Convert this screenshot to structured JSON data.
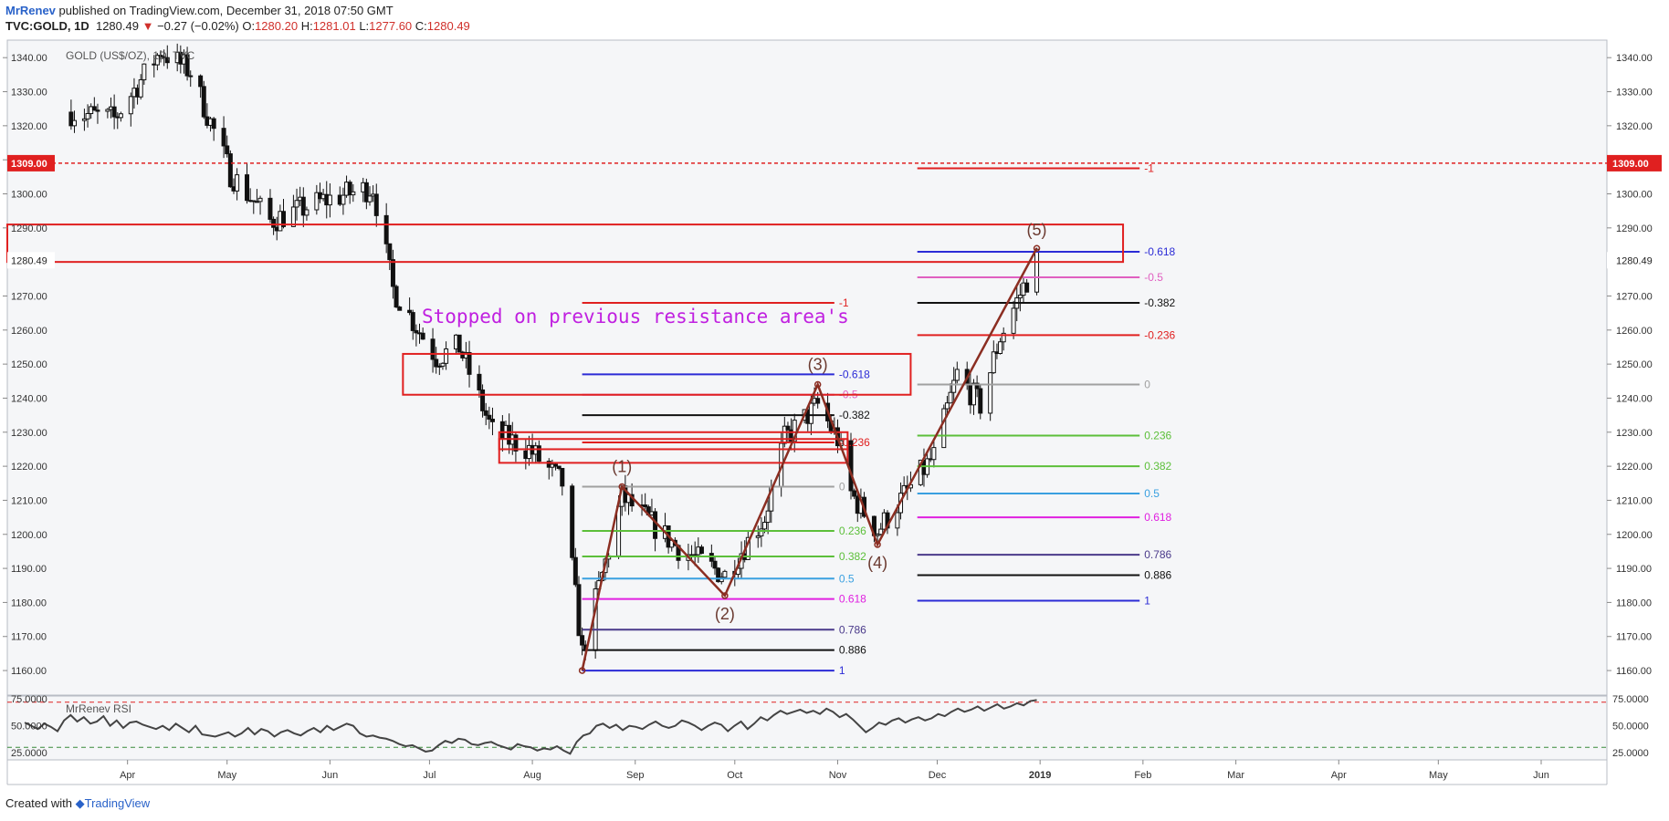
{
  "header": {
    "author": "MrRenev",
    "published": "published on TradingView.com, December 31, 2018 07:50 GMT",
    "symbol": "TVC:GOLD, 1D",
    "last": "1280.49",
    "change_arrow": "▼",
    "change": "−0.27 (−0.02%)",
    "o_label": "O:",
    "o_value": "1280.20",
    "h_label": "H:",
    "h_value": "1281.01",
    "l_label": "L:",
    "l_value": "1277.60",
    "c_label": "C:",
    "c_value": "1280.49"
  },
  "footer": {
    "created_with": "Created with",
    "brand": "TradingView"
  },
  "colors": {
    "red": "#e02020",
    "candle": "#111111",
    "wave": "#8b2e22",
    "blue": "#2b2bd6",
    "magenta": "#e020e0",
    "black": "#111111",
    "grey": "#a0a0a0",
    "green": "#5cbf3a",
    "lightblue": "#3aa0e0",
    "purple": "#4a3a8a",
    "pink": "#e060c0",
    "annotation": "#c020e0"
  },
  "chart_data": [
    {
      "type": "candlestick",
      "title": "GOLD (US$/OZ), 1D, TVC",
      "x_tick_labels": [
        "Apr",
        "May",
        "Jun",
        "Jul",
        "Aug",
        "Sep",
        "Oct",
        "Nov",
        "Dec",
        "2019",
        "Feb",
        "Mar",
        "Apr",
        "May",
        "Jun"
      ],
      "y_tick_labels": [
        "1340.00",
        "1330.00",
        "1320.00",
        "1310.00",
        "1300.00",
        "1290.00",
        "1270.00",
        "1260.00",
        "1250.00",
        "1240.00",
        "1230.00",
        "1220.00",
        "1210.00",
        "1200.00",
        "1190.00",
        "1180.00",
        "1170.00",
        "1160.00"
      ],
      "ylim": [
        1156,
        1343
      ],
      "price_labels": {
        "resistance": "1309.00",
        "last": "1280.49"
      },
      "key_price_levels": [
        1309,
        1280.49
      ],
      "resistance_zones": [
        [
          1280,
          1291
        ],
        [
          1241,
          1253
        ],
        [
          1225,
          1230
        ],
        [
          1221,
          1228
        ]
      ],
      "annotation": "Stopped on previous resistance area's",
      "wave_points": [
        {
          "label": "",
          "date": "2018-08-16",
          "price": 1160
        },
        {
          "label": "(1)",
          "date": "2018-08-28",
          "price": 1214
        },
        {
          "label": "(2)",
          "date": "2018-09-28",
          "price": 1182
        },
        {
          "label": "(3)",
          "date": "2018-10-26",
          "price": 1244
        },
        {
          "label": "(4)",
          "date": "2018-11-13",
          "price": 1197
        },
        {
          "label": "(5)",
          "date": "2018-12-31",
          "price": 1284
        }
      ],
      "fib_sets": [
        {
          "levels": [
            {
              "label": "-1",
              "price": 1268,
              "color": "red"
            },
            {
              "label": "-0.618",
              "price": 1247,
              "color": "blue"
            },
            {
              "label": "-0.5",
              "price": 1241,
              "color": "pink"
            },
            {
              "label": "-0.382",
              "price": 1235,
              "color": "black"
            },
            {
              "label": "-0.236",
              "price": 1227,
              "color": "red"
            },
            {
              "label": "0",
              "price": 1214,
              "color": "grey"
            },
            {
              "label": "0.236",
              "price": 1201,
              "color": "green"
            },
            {
              "label": "0.382",
              "price": 1193.5,
              "color": "green"
            },
            {
              "label": "0.5",
              "price": 1187,
              "color": "lightblue"
            },
            {
              "label": "0.618",
              "price": 1181,
              "color": "magenta"
            },
            {
              "label": "0.786",
              "price": 1172,
              "color": "purple"
            },
            {
              "label": "0.886",
              "price": 1166,
              "color": "black"
            },
            {
              "label": "1",
              "price": 1160,
              "color": "blue"
            }
          ]
        },
        {
          "levels": [
            {
              "label": "-1",
              "price": 1307.5,
              "color": "red"
            },
            {
              "label": "-0.618",
              "price": 1283,
              "color": "blue"
            },
            {
              "label": "-0.5",
              "price": 1275.5,
              "color": "pink"
            },
            {
              "label": "-0.382",
              "price": 1268,
              "color": "black"
            },
            {
              "label": "-0.236",
              "price": 1258.5,
              "color": "red"
            },
            {
              "label": "0",
              "price": 1244,
              "color": "grey"
            },
            {
              "label": "0.236",
              "price": 1229,
              "color": "green"
            },
            {
              "label": "0.382",
              "price": 1220,
              "color": "green"
            },
            {
              "label": "0.5",
              "price": 1212,
              "color": "lightblue"
            },
            {
              "label": "0.618",
              "price": 1205,
              "color": "magenta"
            },
            {
              "label": "0.786",
              "price": 1194,
              "color": "purple"
            },
            {
              "label": "0.886",
              "price": 1188,
              "color": "black"
            },
            {
              "label": "1",
              "price": 1180.5,
              "color": "blue"
            }
          ]
        }
      ]
    },
    {
      "type": "line",
      "title": "MrRenev RSI",
      "y_tick_labels": [
        "75.0000",
        "50.0000",
        "25.0000"
      ],
      "ylim": [
        20,
        76
      ],
      "reference_lines": [
        72,
        30
      ],
      "values": [
        53,
        50,
        47,
        52,
        49,
        45,
        55,
        60,
        54,
        58,
        52,
        54,
        59,
        50,
        55,
        48,
        53,
        54,
        51,
        49,
        47,
        50,
        46,
        52,
        48,
        44,
        50,
        42,
        41,
        40,
        42,
        44,
        40,
        43,
        48,
        42,
        47,
        45,
        40,
        44,
        46,
        43,
        41,
        45,
        48,
        44,
        50,
        46,
        49,
        52,
        50,
        43,
        40,
        41,
        39,
        38,
        36,
        33,
        31,
        32,
        29,
        26,
        27,
        32,
        36,
        34,
        38,
        37,
        33,
        32,
        34,
        35,
        32,
        30,
        28,
        33,
        31,
        30,
        27,
        29,
        28,
        31,
        27,
        24,
        35,
        41,
        43,
        50,
        52,
        48,
        51,
        46,
        50,
        49,
        47,
        51,
        54,
        50,
        48,
        50,
        55,
        53,
        50,
        46,
        50,
        53,
        51,
        45,
        50,
        54,
        47,
        52,
        58,
        55,
        60,
        64,
        61,
        63,
        65,
        62,
        64,
        61,
        66,
        63,
        58,
        61,
        56,
        50,
        44,
        48,
        53,
        51,
        55,
        57,
        53,
        56,
        58,
        55,
        57,
        61,
        59,
        63,
        66,
        63,
        65,
        68,
        64,
        67,
        70,
        66,
        68,
        71,
        69,
        73,
        74
      ]
    }
  ]
}
